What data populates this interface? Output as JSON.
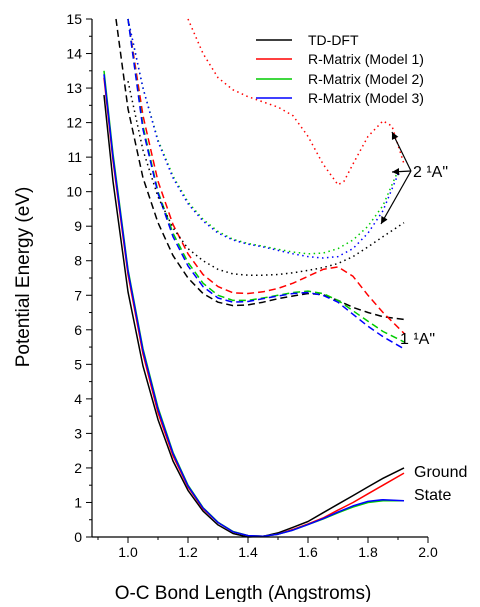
{
  "chart_data": {
    "type": "line",
    "xlabel": "O-C Bond Length (Angstroms)",
    "ylabel": "Potential Energy (eV)",
    "xlim": [
      0.88,
      2.0
    ],
    "ylim": [
      0,
      15
    ],
    "x_ticks": [
      "1.0",
      "1.2",
      "1.4",
      "1.6",
      "1.8",
      "2.0"
    ],
    "y_ticks": [
      "0",
      "1",
      "2",
      "3",
      "4",
      "5",
      "6",
      "7",
      "8",
      "9",
      "10",
      "11",
      "12",
      "13",
      "14",
      "15"
    ],
    "grid": false,
    "legend_position": "top-right",
    "legend": [
      {
        "label": "TD-DFT",
        "color": "#000000"
      },
      {
        "label": "R-Matrix (Model 1)",
        "color": "#ff0000"
      },
      {
        "label": "R-Matrix (Model 2)",
        "color": "#00cc00"
      },
      {
        "label": "R-Matrix (Model 3)",
        "color": "#0000ff"
      }
    ],
    "annotations": {
      "upper_state": "2 ¹A\"",
      "lower_state": "1 ¹A\"",
      "ground_line1": "Ground",
      "ground_line2": "State"
    },
    "series": [
      {
        "color": "#000000",
        "style": "solid",
        "points": [
          [
            0.92,
            12.8
          ],
          [
            0.95,
            10.3
          ],
          [
            1.0,
            7.1
          ],
          [
            1.05,
            4.95
          ],
          [
            1.1,
            3.4
          ],
          [
            1.15,
            2.2
          ],
          [
            1.2,
            1.35
          ],
          [
            1.25,
            0.75
          ],
          [
            1.3,
            0.35
          ],
          [
            1.35,
            0.1
          ],
          [
            1.4,
            0.0
          ],
          [
            1.45,
            0.02
          ],
          [
            1.5,
            0.12
          ],
          [
            1.55,
            0.28
          ],
          [
            1.6,
            0.45
          ],
          [
            1.65,
            0.7
          ],
          [
            1.7,
            0.95
          ],
          [
            1.75,
            1.2
          ],
          [
            1.8,
            1.45
          ],
          [
            1.85,
            1.7
          ],
          [
            1.92,
            2.0
          ]
        ]
      },
      {
        "color": "#ff0000",
        "style": "solid",
        "points": [
          [
            0.92,
            13.3
          ],
          [
            0.95,
            10.9
          ],
          [
            1.0,
            7.6
          ],
          [
            1.05,
            5.3
          ],
          [
            1.1,
            3.6
          ],
          [
            1.15,
            2.35
          ],
          [
            1.2,
            1.45
          ],
          [
            1.25,
            0.82
          ],
          [
            1.3,
            0.42
          ],
          [
            1.35,
            0.15
          ],
          [
            1.4,
            0.04
          ],
          [
            1.45,
            0.02
          ],
          [
            1.5,
            0.08
          ],
          [
            1.55,
            0.22
          ],
          [
            1.6,
            0.38
          ],
          [
            1.65,
            0.55
          ],
          [
            1.7,
            0.78
          ],
          [
            1.75,
            1.0
          ],
          [
            1.8,
            1.25
          ],
          [
            1.85,
            1.5
          ],
          [
            1.92,
            1.85
          ]
        ]
      },
      {
        "color": "#00cc00",
        "style": "solid",
        "points": [
          [
            0.92,
            13.5
          ],
          [
            0.95,
            11.1
          ],
          [
            1.0,
            7.75
          ],
          [
            1.05,
            5.45
          ],
          [
            1.1,
            3.75
          ],
          [
            1.15,
            2.45
          ],
          [
            1.2,
            1.5
          ],
          [
            1.25,
            0.85
          ],
          [
            1.3,
            0.43
          ],
          [
            1.35,
            0.16
          ],
          [
            1.4,
            0.04
          ],
          [
            1.45,
            0.02
          ],
          [
            1.5,
            0.08
          ],
          [
            1.55,
            0.2
          ],
          [
            1.6,
            0.36
          ],
          [
            1.65,
            0.52
          ],
          [
            1.7,
            0.7
          ],
          [
            1.75,
            0.87
          ],
          [
            1.8,
            1.0
          ],
          [
            1.85,
            1.05
          ],
          [
            1.92,
            1.05
          ]
        ]
      },
      {
        "color": "#0000ff",
        "style": "solid",
        "points": [
          [
            0.92,
            13.4
          ],
          [
            0.95,
            11.0
          ],
          [
            1.0,
            7.7
          ],
          [
            1.05,
            5.4
          ],
          [
            1.1,
            3.7
          ],
          [
            1.15,
            2.42
          ],
          [
            1.2,
            1.48
          ],
          [
            1.25,
            0.84
          ],
          [
            1.3,
            0.42
          ],
          [
            1.35,
            0.15
          ],
          [
            1.4,
            0.04
          ],
          [
            1.45,
            0.02
          ],
          [
            1.5,
            0.08
          ],
          [
            1.55,
            0.2
          ],
          [
            1.6,
            0.36
          ],
          [
            1.65,
            0.53
          ],
          [
            1.7,
            0.72
          ],
          [
            1.75,
            0.9
          ],
          [
            1.8,
            1.03
          ],
          [
            1.85,
            1.08
          ],
          [
            1.92,
            1.05
          ]
        ]
      },
      {
        "color": "#000000",
        "style": "dashed",
        "points": [
          [
            0.96,
            15
          ],
          [
            1.0,
            12.4
          ],
          [
            1.05,
            10.4
          ],
          [
            1.1,
            9.1
          ],
          [
            1.15,
            8.15
          ],
          [
            1.2,
            7.5
          ],
          [
            1.25,
            7.05
          ],
          [
            1.3,
            6.8
          ],
          [
            1.35,
            6.7
          ],
          [
            1.4,
            6.72
          ],
          [
            1.45,
            6.8
          ],
          [
            1.5,
            6.9
          ],
          [
            1.55,
            6.98
          ],
          [
            1.6,
            7.05
          ],
          [
            1.65,
            7.02
          ],
          [
            1.7,
            6.85
          ],
          [
            1.75,
            6.65
          ],
          [
            1.8,
            6.5
          ],
          [
            1.85,
            6.38
          ],
          [
            1.92,
            6.3
          ]
        ]
      },
      {
        "color": "#ff0000",
        "style": "dashed",
        "points": [
          [
            1.0,
            15
          ],
          [
            1.05,
            12.2
          ],
          [
            1.1,
            10.3
          ],
          [
            1.15,
            9.05
          ],
          [
            1.2,
            8.2
          ],
          [
            1.25,
            7.6
          ],
          [
            1.3,
            7.25
          ],
          [
            1.35,
            7.07
          ],
          [
            1.4,
            7.05
          ],
          [
            1.45,
            7.1
          ],
          [
            1.5,
            7.2
          ],
          [
            1.55,
            7.35
          ],
          [
            1.6,
            7.55
          ],
          [
            1.65,
            7.75
          ],
          [
            1.7,
            7.82
          ],
          [
            1.75,
            7.55
          ],
          [
            1.8,
            7.0
          ],
          [
            1.85,
            6.5
          ],
          [
            1.92,
            5.9
          ]
        ]
      },
      {
        "color": "#00cc00",
        "style": "dashed",
        "points": [
          [
            1.0,
            15
          ],
          [
            1.05,
            11.9
          ],
          [
            1.1,
            10.0
          ],
          [
            1.15,
            8.8
          ],
          [
            1.2,
            7.95
          ],
          [
            1.25,
            7.35
          ],
          [
            1.3,
            7.0
          ],
          [
            1.35,
            6.85
          ],
          [
            1.4,
            6.85
          ],
          [
            1.45,
            6.92
          ],
          [
            1.5,
            7.0
          ],
          [
            1.55,
            7.08
          ],
          [
            1.6,
            7.12
          ],
          [
            1.65,
            7.05
          ],
          [
            1.7,
            6.85
          ],
          [
            1.75,
            6.55
          ],
          [
            1.8,
            6.25
          ],
          [
            1.85,
            5.95
          ],
          [
            1.92,
            5.65
          ]
        ]
      },
      {
        "color": "#0000ff",
        "style": "dashed",
        "points": [
          [
            1.0,
            15
          ],
          [
            1.05,
            11.8
          ],
          [
            1.1,
            9.95
          ],
          [
            1.15,
            8.7
          ],
          [
            1.2,
            7.85
          ],
          [
            1.25,
            7.25
          ],
          [
            1.3,
            6.92
          ],
          [
            1.35,
            6.8
          ],
          [
            1.4,
            6.82
          ],
          [
            1.45,
            6.9
          ],
          [
            1.5,
            6.98
          ],
          [
            1.55,
            7.05
          ],
          [
            1.6,
            7.08
          ],
          [
            1.65,
            7.0
          ],
          [
            1.7,
            6.8
          ],
          [
            1.75,
            6.45
          ],
          [
            1.8,
            6.1
          ],
          [
            1.85,
            5.8
          ],
          [
            1.92,
            5.45
          ]
        ]
      },
      {
        "color": "#000000",
        "style": "dotted",
        "points": [
          [
            1.0,
            13.2
          ],
          [
            1.05,
            11.2
          ],
          [
            1.1,
            9.85
          ],
          [
            1.15,
            8.95
          ],
          [
            1.2,
            8.35
          ],
          [
            1.25,
            8.0
          ],
          [
            1.3,
            7.75
          ],
          [
            1.35,
            7.62
          ],
          [
            1.4,
            7.58
          ],
          [
            1.45,
            7.58
          ],
          [
            1.5,
            7.6
          ],
          [
            1.55,
            7.65
          ],
          [
            1.6,
            7.72
          ],
          [
            1.65,
            7.8
          ],
          [
            1.7,
            7.92
          ],
          [
            1.75,
            8.12
          ],
          [
            1.8,
            8.4
          ],
          [
            1.85,
            8.7
          ],
          [
            1.92,
            9.1
          ]
        ]
      },
      {
        "color": "#ff0000",
        "style": "dotted",
        "points": [
          [
            1.2,
            15
          ],
          [
            1.25,
            14.0
          ],
          [
            1.3,
            13.3
          ],
          [
            1.35,
            12.95
          ],
          [
            1.4,
            12.75
          ],
          [
            1.45,
            12.6
          ],
          [
            1.5,
            12.45
          ],
          [
            1.55,
            12.2
          ],
          [
            1.6,
            11.6
          ],
          [
            1.65,
            10.8
          ],
          [
            1.7,
            10.2
          ],
          [
            1.72,
            10.3
          ],
          [
            1.75,
            10.8
          ],
          [
            1.8,
            11.6
          ],
          [
            1.85,
            12.05
          ],
          [
            1.88,
            11.9
          ],
          [
            1.92,
            10.8
          ]
        ]
      },
      {
        "color": "#00cc00",
        "style": "dotted",
        "points": [
          [
            1.0,
            15
          ],
          [
            1.05,
            13.0
          ],
          [
            1.1,
            11.5
          ],
          [
            1.15,
            10.45
          ],
          [
            1.2,
            9.7
          ],
          [
            1.25,
            9.2
          ],
          [
            1.3,
            8.85
          ],
          [
            1.35,
            8.62
          ],
          [
            1.4,
            8.5
          ],
          [
            1.45,
            8.42
          ],
          [
            1.5,
            8.33
          ],
          [
            1.55,
            8.25
          ],
          [
            1.6,
            8.2
          ],
          [
            1.65,
            8.22
          ],
          [
            1.7,
            8.35
          ],
          [
            1.75,
            8.6
          ],
          [
            1.8,
            9.0
          ],
          [
            1.85,
            9.6
          ],
          [
            1.9,
            10.6
          ]
        ]
      },
      {
        "color": "#0000ff",
        "style": "dotted",
        "points": [
          [
            1.0,
            15
          ],
          [
            1.05,
            13.0
          ],
          [
            1.1,
            11.45
          ],
          [
            1.15,
            10.4
          ],
          [
            1.2,
            9.65
          ],
          [
            1.25,
            9.15
          ],
          [
            1.3,
            8.8
          ],
          [
            1.35,
            8.6
          ],
          [
            1.4,
            8.48
          ],
          [
            1.45,
            8.4
          ],
          [
            1.5,
            8.3
          ],
          [
            1.55,
            8.2
          ],
          [
            1.6,
            8.12
          ],
          [
            1.65,
            8.08
          ],
          [
            1.7,
            8.12
          ],
          [
            1.75,
            8.35
          ],
          [
            1.8,
            8.8
          ],
          [
            1.85,
            9.45
          ],
          [
            1.9,
            10.5
          ]
        ]
      }
    ]
  }
}
